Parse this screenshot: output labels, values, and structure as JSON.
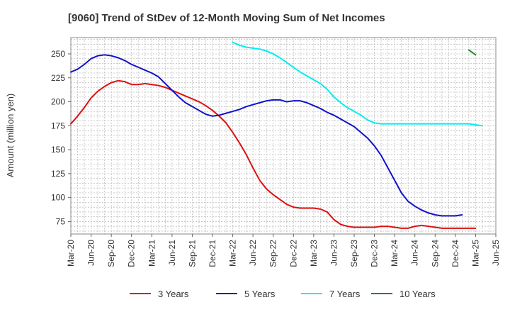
{
  "chart_data": {
    "type": "line",
    "title": "[9060]  Trend of StDev of 12-Month Moving Sum of Net Incomes",
    "xlabel": "",
    "ylabel": "Amount (million yen)",
    "ylim": [
      62,
      267
    ],
    "yticks": [
      75,
      100,
      125,
      150,
      175,
      200,
      225,
      250
    ],
    "xlim": [
      "2020-03",
      "2025-06"
    ],
    "xticks": [
      "Mar-20",
      "Jun-20",
      "Sep-20",
      "Dec-20",
      "Mar-21",
      "Jun-21",
      "Sep-21",
      "Dec-21",
      "Mar-22",
      "Jun-22",
      "Sep-22",
      "Dec-22",
      "Mar-23",
      "Jun-23",
      "Sep-23",
      "Dec-23",
      "Mar-24",
      "Jun-24",
      "Sep-24",
      "Dec-24",
      "Mar-25",
      "Jun-25"
    ],
    "grid": true,
    "legend_position": "bottom",
    "series": [
      {
        "name": "3 Years",
        "color": "#dd1111",
        "start": "2020-03",
        "values": [
          177,
          185,
          194,
          204,
          211,
          216,
          220,
          222,
          221,
          218,
          218,
          219,
          218,
          217,
          215,
          212,
          209,
          206,
          203,
          200,
          196,
          191,
          185,
          178,
          168,
          157,
          145,
          131,
          118,
          109,
          103,
          98,
          93,
          90,
          89,
          89,
          89,
          88,
          85,
          77,
          72,
          70,
          69,
          69,
          69,
          69,
          70,
          70,
          69,
          68,
          68,
          70,
          71,
          70,
          69,
          68,
          68,
          68,
          68,
          68,
          68
        ]
      },
      {
        "name": "5 Years",
        "color": "#1111cc",
        "start": "2020-03",
        "values": [
          231,
          234,
          239,
          245,
          248,
          249,
          248,
          246,
          243,
          239,
          236,
          233,
          230,
          226,
          219,
          212,
          205,
          199,
          195,
          191,
          187,
          185,
          186,
          188,
          190,
          192,
          195,
          197,
          199,
          201,
          202,
          202,
          200,
          201,
          201,
          199,
          196,
          193,
          189,
          186,
          182,
          178,
          174,
          168,
          162,
          154,
          144,
          131,
          118,
          105,
          96,
          91,
          87,
          84,
          82,
          81,
          81,
          81,
          82
        ]
      },
      {
        "name": "7 Years",
        "color": "#00eeee",
        "start": "2022-03",
        "values": [
          262,
          259,
          257,
          256,
          255,
          253,
          250,
          246,
          241,
          236,
          231,
          227,
          223,
          219,
          213,
          205,
          199,
          194,
          190,
          186,
          181,
          178,
          177,
          177,
          177,
          177,
          177,
          177,
          177,
          177,
          177,
          177,
          177,
          177,
          177,
          177,
          176,
          175
        ]
      },
      {
        "name": "10 Years",
        "color": "#228822",
        "start": "2025-02",
        "values": [
          254,
          249
        ]
      }
    ]
  }
}
